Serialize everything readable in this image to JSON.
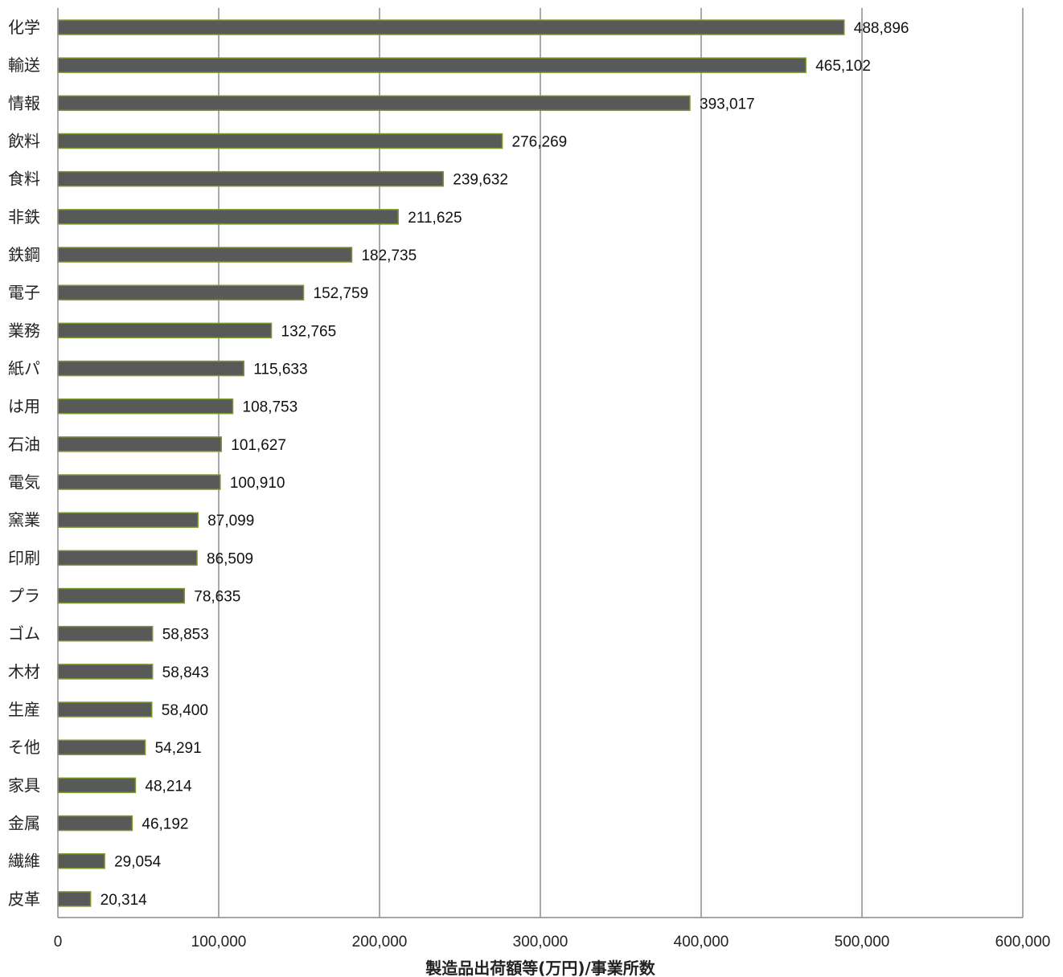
{
  "chart_data": {
    "type": "bar",
    "orientation": "horizontal",
    "categories": [
      "化学",
      "輸送",
      "情報",
      "飲料",
      "食料",
      "非鉄",
      "鉄鋼",
      "電子",
      "業務",
      "紙パ",
      "は用",
      "石油",
      "電気",
      "窯業",
      "印刷",
      "プラ",
      "ゴム",
      "木材",
      "生産",
      "そ他",
      "家具",
      "金属",
      "繊維",
      "皮革"
    ],
    "values": [
      488896,
      465102,
      393017,
      276269,
      239632,
      211625,
      182735,
      152759,
      132765,
      115633,
      108753,
      101627,
      100910,
      87099,
      86509,
      78635,
      58853,
      58843,
      58400,
      54291,
      48214,
      46192,
      29054,
      20314
    ],
    "data_labels": [
      "488,896",
      "465,102",
      "393,017",
      "276,269",
      "239,632",
      "211,625",
      "182,735",
      "152,759",
      "132,765",
      "115,633",
      "108,753",
      "101,627",
      "100,910",
      "87,099",
      "86,509",
      "78,635",
      "58,853",
      "58,843",
      "58,400",
      "54,291",
      "48,214",
      "46,192",
      "29,054",
      "20,314"
    ],
    "xlim": [
      0,
      600000
    ],
    "x_ticks": [
      0,
      100000,
      200000,
      300000,
      400000,
      500000,
      600000
    ],
    "x_tick_labels": [
      "0",
      "100,000",
      "200,000",
      "300,000",
      "400,000",
      "500,000",
      "600,000"
    ],
    "xlabel": "製造品出荷額等(万円)/事業所数",
    "title": "",
    "grid": "vertical",
    "colors": {
      "bar_fill": "#595959",
      "bar_edge": "#7a9a2e",
      "grid": "#8c8c8c",
      "axis": "#8c8c8c"
    }
  }
}
